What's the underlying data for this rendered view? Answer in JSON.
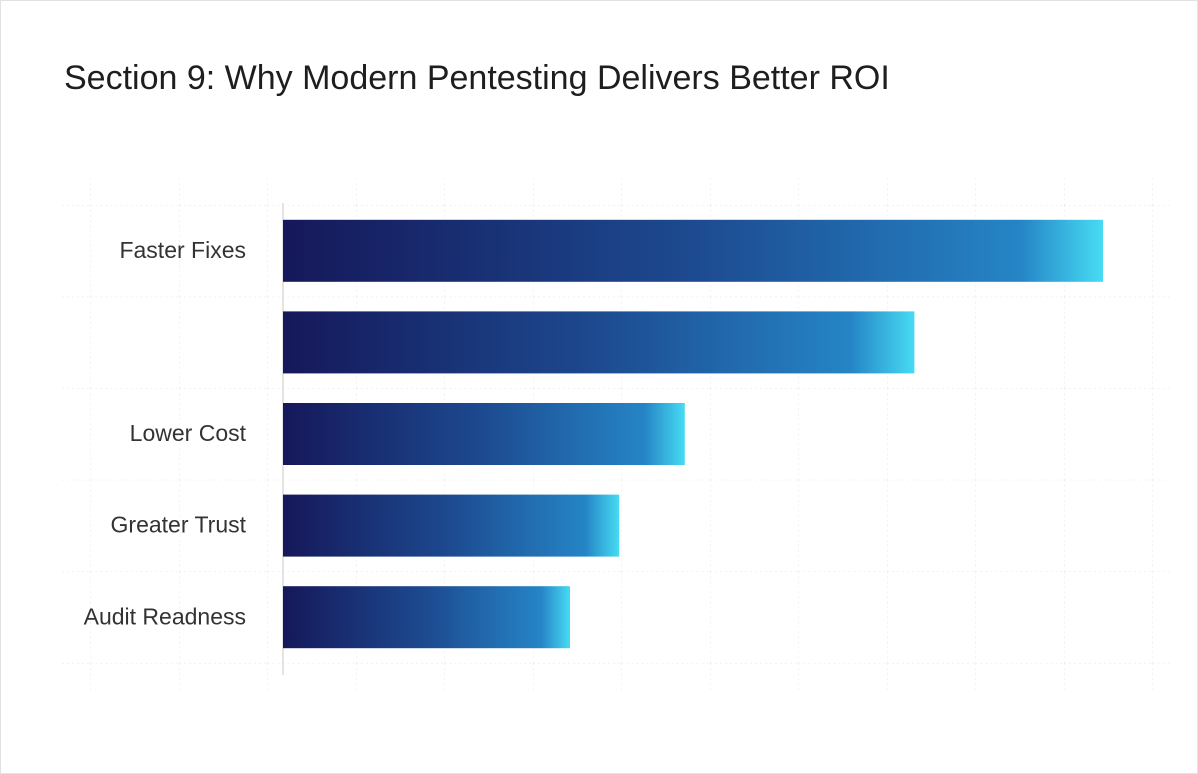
{
  "chart_data": {
    "type": "hbar",
    "title": "Section 9: Why Modern Pentesting Delivers Better ROI",
    "categories": [
      "Faster Fixes",
      null,
      "Lower Cost",
      "Greater Trust",
      "Audit Readness"
    ],
    "values": [
      100,
      77,
      49,
      41,
      35
    ],
    "xlim": [
      0,
      100
    ],
    "grid": true,
    "gradient": [
      "#15185a",
      "#1d4a90",
      "#2585c6",
      "#47dbf3"
    ]
  }
}
